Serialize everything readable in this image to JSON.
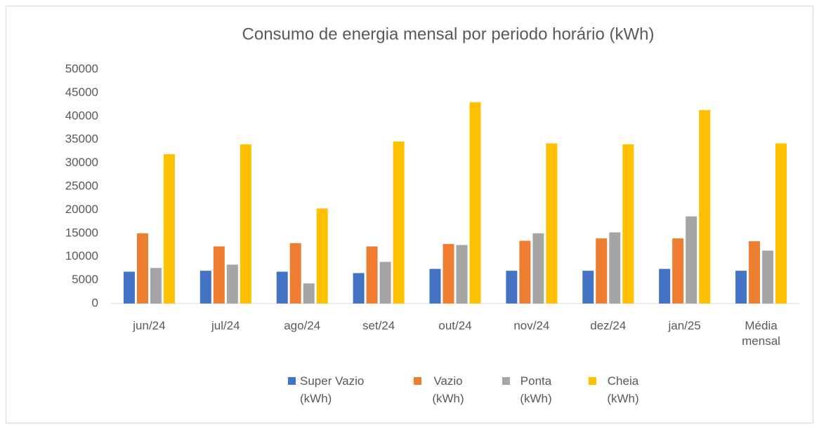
{
  "chart_data": {
    "type": "bar",
    "title": "Consumo de energia mensal por periodo horário (kWh)",
    "categories": [
      "jun/24",
      "jul/24",
      "ago/24",
      "set/24",
      "out/24",
      "nov/24",
      "dez/24",
      "jan/25",
      "Média mensal"
    ],
    "series": [
      {
        "name": "Super Vazio (kWh)",
        "color": "#4472c4",
        "values": [
          6800,
          7000,
          6800,
          6500,
          7400,
          7000,
          7000,
          7400,
          7000
        ]
      },
      {
        "name": "Vazio (kWh)",
        "color": "#ed7d31",
        "values": [
          15000,
          12200,
          12900,
          12200,
          12700,
          13400,
          13900,
          13900,
          13300
        ]
      },
      {
        "name": "Ponta (kWh)",
        "color": "#a5a5a5",
        "values": [
          7600,
          8300,
          4300,
          8900,
          12500,
          15000,
          15200,
          18600,
          11300
        ]
      },
      {
        "name": "Cheia (kWh)",
        "color": "#ffc000",
        "values": [
          31900,
          34000,
          20300,
          34600,
          43000,
          34200,
          34000,
          41300,
          34200
        ]
      }
    ],
    "ylim": [
      0,
      50000
    ],
    "yticks": [
      0,
      5000,
      10000,
      15000,
      20000,
      25000,
      30000,
      35000,
      40000,
      45000,
      50000
    ],
    "grid": false,
    "legend": "bottom"
  }
}
